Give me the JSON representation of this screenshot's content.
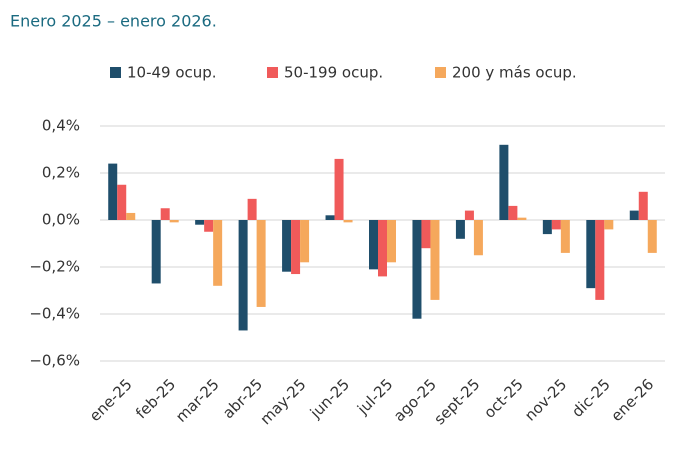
{
  "chart_data": {
    "type": "bar",
    "subtitle": "Enero 2025 – enero 2026.",
    "categories": [
      "ene-25",
      "feb-25",
      "mar-25",
      "abr-25",
      "may-25",
      "jun-25",
      "jul-25",
      "ago-25",
      "sept-25",
      "oct-25",
      "nov-25",
      "dic-25",
      "ene-26"
    ],
    "series": [
      {
        "name": "10-49 ocup.",
        "color": "#1f4e6b",
        "values": [
          0.24,
          -0.27,
          -0.02,
          -0.47,
          -0.22,
          0.02,
          -0.21,
          -0.42,
          -0.08,
          0.32,
          -0.06,
          -0.29,
          0.04
        ]
      },
      {
        "name": "50-199 ocup.",
        "color": "#f05a5a",
        "values": [
          0.15,
          0.05,
          -0.05,
          0.09,
          -0.23,
          0.26,
          -0.24,
          -0.12,
          0.04,
          0.06,
          -0.04,
          -0.34,
          0.12
        ]
      },
      {
        "name": "200 y más ocup.",
        "color": "#f5a85c",
        "values": [
          0.03,
          -0.01,
          -0.28,
          -0.37,
          -0.18,
          -0.01,
          -0.18,
          -0.34,
          -0.15,
          0.01,
          -0.14,
          -0.04,
          -0.14
        ]
      }
    ],
    "ylim": [
      -0.6,
      0.4
    ],
    "yticks": [
      {
        "value": 0.4,
        "label": "0,4%"
      },
      {
        "value": 0.2,
        "label": "0,2%"
      },
      {
        "value": 0,
        "label": "0,0%"
      },
      {
        "value": -0.2,
        "label": "−0,2%"
      },
      {
        "value": -0.4,
        "label": "−0,4%"
      },
      {
        "value": -0.6,
        "label": "−0,6%"
      }
    ],
    "grid": true,
    "legend": "top"
  }
}
